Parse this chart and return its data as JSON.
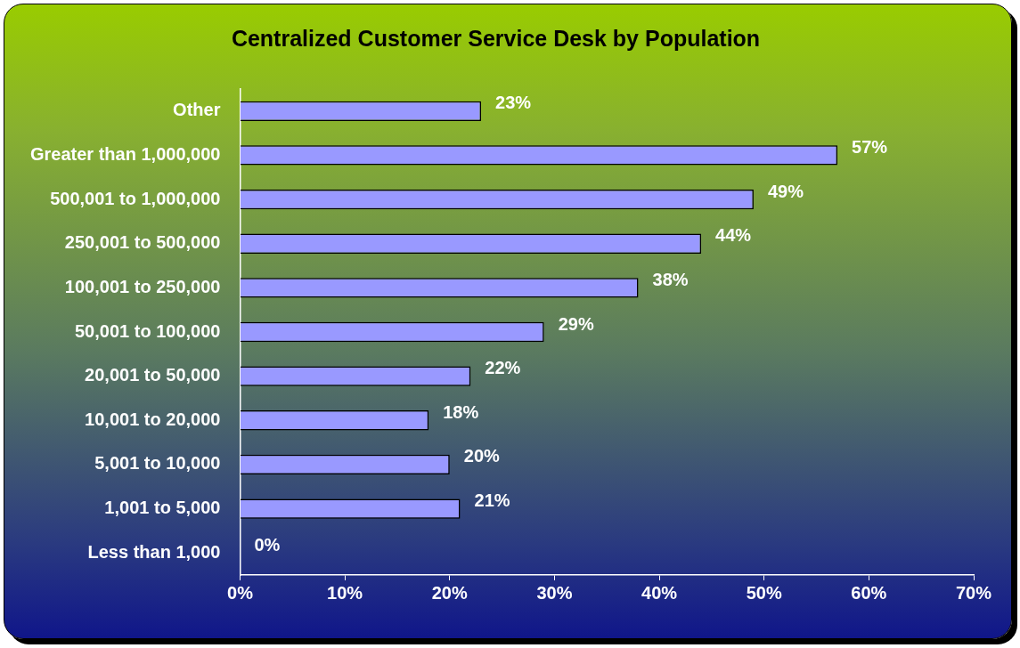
{
  "chart_data": {
    "type": "bar",
    "orientation": "horizontal",
    "title": "Centralized Customer Service Desk by Population",
    "categories": [
      "Other",
      "Greater than 1,000,000",
      "500,001 to 1,000,000",
      "250,001 to 500,000",
      "100,001 to 250,000",
      "50,001 to 100,000",
      "20,001 to 50,000",
      "10,001 to 20,000",
      "5,001 to 10,000",
      "1,001 to 5,000",
      "Less than 1,000"
    ],
    "values": [
      23,
      57,
      49,
      44,
      38,
      29,
      22,
      18,
      20,
      21,
      0
    ],
    "value_labels": [
      "23%",
      "57%",
      "49%",
      "44%",
      "38%",
      "29%",
      "22%",
      "18%",
      "20%",
      "21%",
      "0%"
    ],
    "color": "#9999ff",
    "xlim": [
      0,
      70
    ],
    "xticks": [
      {
        "value": 0,
        "label": "0%"
      },
      {
        "value": 10,
        "label": "10%"
      },
      {
        "value": 20,
        "label": "20%"
      },
      {
        "value": 30,
        "label": "30%"
      },
      {
        "value": 40,
        "label": "40%"
      },
      {
        "value": 50,
        "label": "50%"
      },
      {
        "value": 60,
        "label": "60%"
      },
      {
        "value": 70,
        "label": "70%"
      }
    ],
    "grid": false,
    "legend": false
  }
}
